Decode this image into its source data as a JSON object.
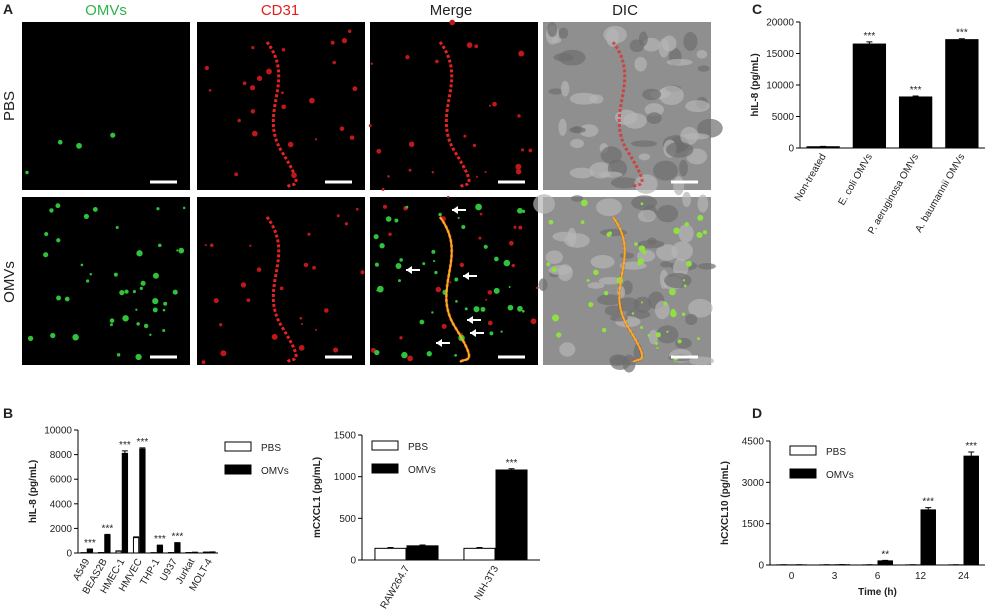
{
  "panel_labels": [
    "A",
    "B",
    "C",
    "D"
  ],
  "panel_a": {
    "columns": [
      "OMVs",
      "CD31",
      "Merge",
      "DIC"
    ],
    "rows": [
      "PBS",
      "OMVs"
    ]
  },
  "chart_data": [
    {
      "type": "bar",
      "ylabel": "hIL-8 (pg/mL)",
      "categories": [
        "Non-treated",
        "E. coli OMVs",
        "P. aeruginosa OMVs",
        "A. baumannii OMVs"
      ],
      "values": [
        200,
        16500,
        8100,
        17200
      ],
      "errors": [
        50,
        350,
        150,
        150
      ],
      "color": "#000000",
      "annotations": [
        null,
        "***",
        "***",
        "***"
      ],
      "ylim": [
        0,
        20000
      ],
      "yticks": [
        0,
        5000,
        10000,
        15000,
        20000
      ]
    },
    {
      "type": "bar",
      "ylabel": "hIL-8 (pg/mL)",
      "categories": [
        "A549",
        "BEAS2B",
        "HMEC-1",
        "HMVEC",
        "THP-1",
        "U937",
        "Jurkat",
        "MOLT-4"
      ],
      "series": [
        {
          "name": "PBS",
          "color": "#ffffff",
          "values": [
            20,
            30,
            150,
            1250,
            20,
            30,
            30,
            60
          ],
          "errors": [
            5,
            5,
            20,
            60,
            5,
            5,
            5,
            10
          ]
        },
        {
          "name": "OMVs",
          "color": "#000000",
          "values": [
            300,
            1450,
            8100,
            8450,
            600,
            800,
            50,
            80
          ],
          "errors": [
            30,
            60,
            200,
            100,
            40,
            40,
            10,
            10
          ],
          "annotations": [
            "***",
            "***",
            "***",
            "***",
            "***",
            "***",
            null,
            null
          ]
        }
      ],
      "ylim": [
        0,
        10000
      ],
      "yticks": [
        0,
        2000,
        4000,
        6000,
        8000,
        10000
      ]
    },
    {
      "type": "bar",
      "ylabel": "mCXCL1 (pg/mL)",
      "categories": [
        "RAW264.7",
        "NIH-3T3"
      ],
      "series": [
        {
          "name": "PBS",
          "color": "#ffffff",
          "values": [
            140,
            140
          ],
          "errors": [
            10,
            10
          ]
        },
        {
          "name": "OMVs",
          "color": "#000000",
          "values": [
            170,
            1080
          ],
          "errors": [
            10,
            15
          ],
          "annotations": [
            null,
            "***"
          ]
        }
      ],
      "ylim": [
        0,
        1500
      ],
      "yticks": [
        0,
        500,
        1000,
        1500
      ]
    },
    {
      "type": "bar",
      "ylabel": "hCXCL10 (pg/mL)",
      "xlabel": "Time (h)",
      "categories": [
        "0",
        "3",
        "6",
        "12",
        "24"
      ],
      "series": [
        {
          "name": "PBS",
          "color": "#ffffff",
          "values": [
            5,
            5,
            5,
            5,
            5
          ],
          "errors": [
            2,
            2,
            2,
            2,
            2
          ]
        },
        {
          "name": "OMVs",
          "color": "#000000",
          "values": [
            5,
            10,
            150,
            2000,
            3950
          ],
          "errors": [
            2,
            3,
            20,
            80,
            150
          ],
          "annotations": [
            null,
            null,
            "**",
            "***",
            "***"
          ]
        }
      ],
      "ylim": [
        0,
        4500
      ],
      "yticks": [
        0,
        1500,
        3000,
        4500
      ]
    }
  ]
}
